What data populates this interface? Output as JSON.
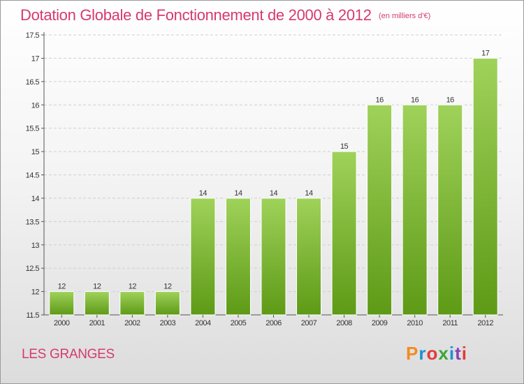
{
  "header": {
    "title": "Dotation Globale de Fonctionnement de 2000 à 2012",
    "subtitle": "(en milliers d'€)"
  },
  "footer": {
    "location": "LES GRANGES",
    "logo_text": "Proxiti",
    "logo_colors": [
      "#f28c1e",
      "#1f8fd6",
      "#e23b3b",
      "#3aa635",
      "#1f8fd6",
      "#8a3fb5",
      "#e23b3b"
    ]
  },
  "colors": {
    "title": "#d63a6d",
    "bar_top": "#9fd25a",
    "bar_bottom": "#5e9a16",
    "grid": "#cfcfcf",
    "axis": "#555555"
  },
  "chart_data": {
    "type": "bar",
    "categories": [
      "2000",
      "2001",
      "2002",
      "2003",
      "2004",
      "2005",
      "2006",
      "2007",
      "2008",
      "2009",
      "2010",
      "2011",
      "2012"
    ],
    "values": [
      12,
      12,
      12,
      12,
      14,
      14,
      14,
      14,
      15,
      16,
      16,
      16,
      17
    ],
    "data_labels": [
      "12",
      "12",
      "12",
      "12",
      "14",
      "14",
      "14",
      "14",
      "15",
      "16",
      "16",
      "16",
      "17"
    ],
    "ylim": [
      11.5,
      17.5
    ],
    "yticks": [
      11.5,
      12,
      12.5,
      13,
      13.5,
      14,
      14.5,
      15,
      15.5,
      16,
      16.5,
      17,
      17.5
    ],
    "ytick_labels": [
      "11.5",
      "12",
      "12.5",
      "13",
      "13.5",
      "14",
      "14.5",
      "15",
      "15.5",
      "16",
      "16.5",
      "17",
      "17.5"
    ],
    "grid": true,
    "legend": "none"
  }
}
